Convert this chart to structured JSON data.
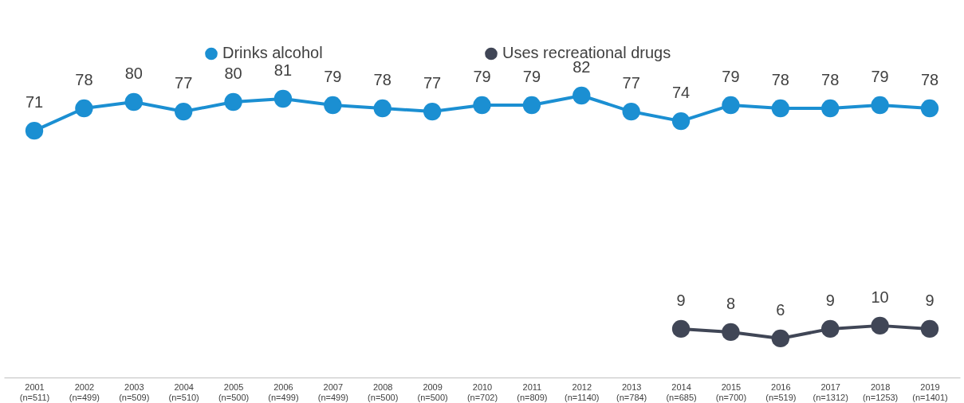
{
  "chart_data": {
    "type": "line",
    "categories": [
      "2001\n(n=511)",
      "2002\n(n=499)",
      "2003\n(n=509)",
      "2004\n(n=510)",
      "2005\n(n=500)",
      "2006\n(n=499)",
      "2007\n(n=499)",
      "2008\n(n=500)",
      "2009\n(n=500)",
      "2010\n(n=702)",
      "2011\n(n=809)",
      "2012\n(n=1140)",
      "2013\n(n=784)",
      "2014\n(n=685)",
      "2015\n(n=700)",
      "2016\n(n=519)",
      "2017\n(n=1312)",
      "2018\n(n=1253)",
      "2019\n(n=1401)"
    ],
    "series": [
      {
        "name": "Drinks alcohol",
        "color": "#1b8fd2",
        "values": [
          71,
          78,
          80,
          77,
          80,
          81,
          79,
          78,
          77,
          79,
          79,
          82,
          77,
          74,
          79,
          78,
          78,
          79,
          78
        ]
      },
      {
        "name": "Uses recreational drugs",
        "color": "#404656",
        "values": [
          null,
          null,
          null,
          null,
          null,
          null,
          null,
          null,
          null,
          null,
          null,
          null,
          null,
          9,
          8,
          6,
          9,
          10,
          9
        ]
      }
    ],
    "data_labels": true,
    "marker": "circle",
    "line_style": "solid",
    "legend": "top",
    "grid": false
  }
}
